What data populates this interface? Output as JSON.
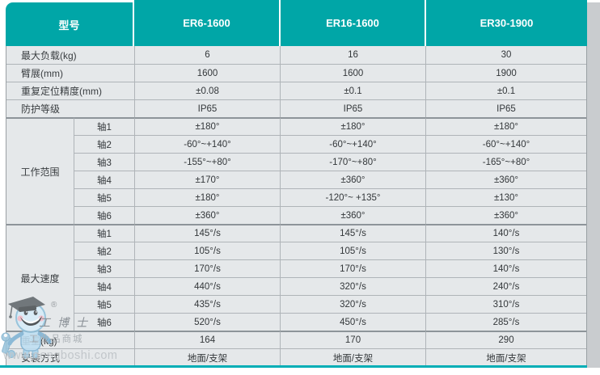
{
  "table": {
    "header": {
      "model_label": "型号",
      "models": [
        "ER6-1600",
        "ER16-1600",
        "ER30-1900"
      ]
    },
    "simple_rows_top": [
      {
        "label": "最大负载(kg)",
        "values": [
          "6",
          "16",
          "30"
        ]
      },
      {
        "label": "臂展(mm)",
        "values": [
          "1600",
          "1600",
          "1900"
        ]
      },
      {
        "label": "重复定位精度(mm)",
        "values": [
          "±0.08",
          "±0.1",
          "±0.1"
        ]
      },
      {
        "label": "防护等级",
        "values": [
          "IP65",
          "IP65",
          "IP65"
        ]
      }
    ],
    "groups": [
      {
        "label": "工作范围",
        "rows": [
          {
            "axis": "轴1",
            "values": [
              "±180°",
              "±180°",
              "±180°"
            ]
          },
          {
            "axis": "轴2",
            "values": [
              "-60°~+140°",
              "-60°~+140°",
              "-60°~+140°"
            ]
          },
          {
            "axis": "轴3",
            "values": [
              "-155°~+80°",
              "-170°~+80°",
              "-165°~+80°"
            ]
          },
          {
            "axis": "轴4",
            "values": [
              "±170°",
              "±360°",
              "±360°"
            ]
          },
          {
            "axis": "轴5",
            "values": [
              "±180°",
              "-120°~ +135°",
              "±130°"
            ]
          },
          {
            "axis": "轴6",
            "values": [
              "±360°",
              "±360°",
              "±360°"
            ]
          }
        ]
      },
      {
        "label": "最大速度",
        "rows": [
          {
            "axis": "轴1",
            "values": [
              "145°/s",
              "145°/s",
              "140°/s"
            ]
          },
          {
            "axis": "轴2",
            "values": [
              "105°/s",
              "105°/s",
              "130°/s"
            ]
          },
          {
            "axis": "轴3",
            "values": [
              "170°/s",
              "170°/s",
              "140°/s"
            ]
          },
          {
            "axis": "轴4",
            "values": [
              "440°/s",
              "320°/s",
              "240°/s"
            ]
          },
          {
            "axis": "轴5",
            "values": [
              "435°/s",
              "320°/s",
              "310°/s"
            ]
          },
          {
            "axis": "轴6",
            "values": [
              "520°/s",
              "450°/s",
              "285°/s"
            ]
          }
        ]
      }
    ],
    "simple_rows_bottom": [
      {
        "label": "重量(kg)",
        "values": [
          "164",
          "170",
          "290"
        ]
      },
      {
        "label": "安装方式",
        "values": [
          "地面/支架",
          "地面/支架",
          "地面/支架"
        ]
      }
    ]
  },
  "watermark": {
    "registered": "®",
    "brand": "工博士",
    "tagline": "工业品商城",
    "url": "www.gongboshi.com"
  },
  "colors": {
    "header_teal": "#00a6a7",
    "body_bg": "#e5e8ea",
    "grid_line": "#afb4b8",
    "group_line": "#8d9499",
    "bottom_line": "#00aeb6",
    "right_band": "#c9cccf"
  }
}
